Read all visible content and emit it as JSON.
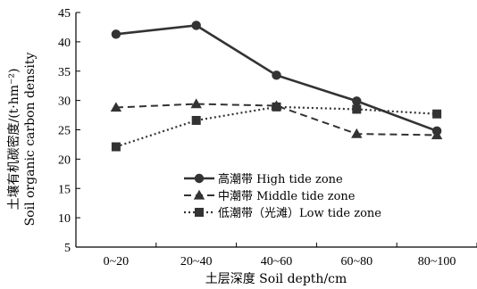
{
  "chart_data": {
    "type": "line",
    "categories": [
      "0~20",
      "20~40",
      "40~60",
      "60~80",
      "80~100"
    ],
    "xlabel": "土层深度 Soil depth/cm",
    "ylabel": "土壤有机碳密度/(t·hm⁻²)",
    "ylabel2": "Soil organic carbon density",
    "ylim": [
      5,
      45
    ],
    "yticks": [
      5,
      10,
      15,
      20,
      25,
      30,
      35,
      40,
      45
    ],
    "grid": false,
    "legend_position": "center-right",
    "series": [
      {
        "name": "高潮带 High tide zone",
        "values": [
          41.3,
          42.8,
          34.3,
          29.9,
          24.8
        ],
        "marker": "circle",
        "dash": "solid",
        "color": "#333333"
      },
      {
        "name": "中潮带 Middle tide zone",
        "values": [
          28.8,
          29.4,
          29.1,
          24.3,
          24.1
        ],
        "marker": "triangle",
        "dash": "dashed",
        "color": "#333333"
      },
      {
        "name": "低潮带（光滩）Low tide zone",
        "values": [
          22.1,
          26.6,
          28.9,
          28.5,
          27.7
        ],
        "marker": "square",
        "dash": "dotted",
        "color": "#333333"
      }
    ]
  }
}
